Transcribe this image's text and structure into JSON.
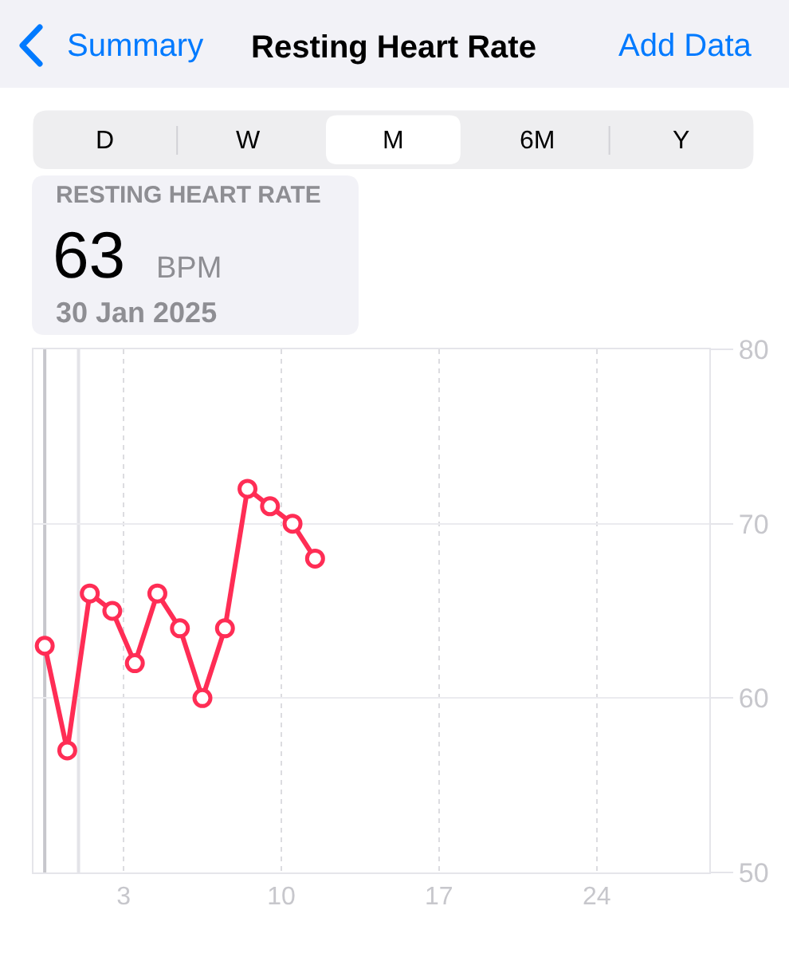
{
  "chart_data": {
    "type": "line",
    "title": "Resting Heart Rate",
    "annotations": [
      "Summary",
      "Add Data",
      "D",
      "W",
      "M",
      "6M",
      "Y",
      "RESTING HEART RATE",
      "63",
      "BPM",
      "30 Jan 2025"
    ],
    "x": [
      "2025-01-30T12:00",
      "2025-01-31T12:00",
      "2025-02-01T12:00",
      "2025-02-02T12:00",
      "2025-02-03T12:00",
      "2025-02-04T12:00",
      "2025-02-05T12:00",
      "2025-02-06T12:00",
      "2025-02-07T12:00",
      "2025-02-08T12:00",
      "2025-02-09T12:00",
      "2025-02-10T12:00",
      "2025-02-11T12:00"
    ],
    "values": [
      63,
      57,
      66,
      65,
      62,
      66,
      64,
      60,
      64,
      72,
      71,
      70,
      68
    ],
    "color": "#ff2d55",
    "marker": "circle",
    "line_style": "solid",
    "xlim": [
      "2025-01-30",
      "2025-03-01"
    ],
    "xticks": [
      {
        "value": "2025-02-03",
        "label": "3"
      },
      {
        "value": "2025-02-10",
        "label": "10"
      },
      {
        "value": "2025-02-17",
        "label": "17"
      },
      {
        "value": "2025-02-24",
        "label": "24"
      }
    ],
    "ylim": [
      50,
      80
    ],
    "yticks": [
      50,
      60,
      70,
      80
    ],
    "grid": true,
    "ref_lines": [
      {
        "axis": "x",
        "value": "2025-01-30T12:00",
        "color": "#c7c7cc",
        "line_style": "solid"
      },
      {
        "axis": "x",
        "value": "2025-02-01",
        "color": "#e3e3e8",
        "line_style": "solid"
      }
    ]
  }
}
